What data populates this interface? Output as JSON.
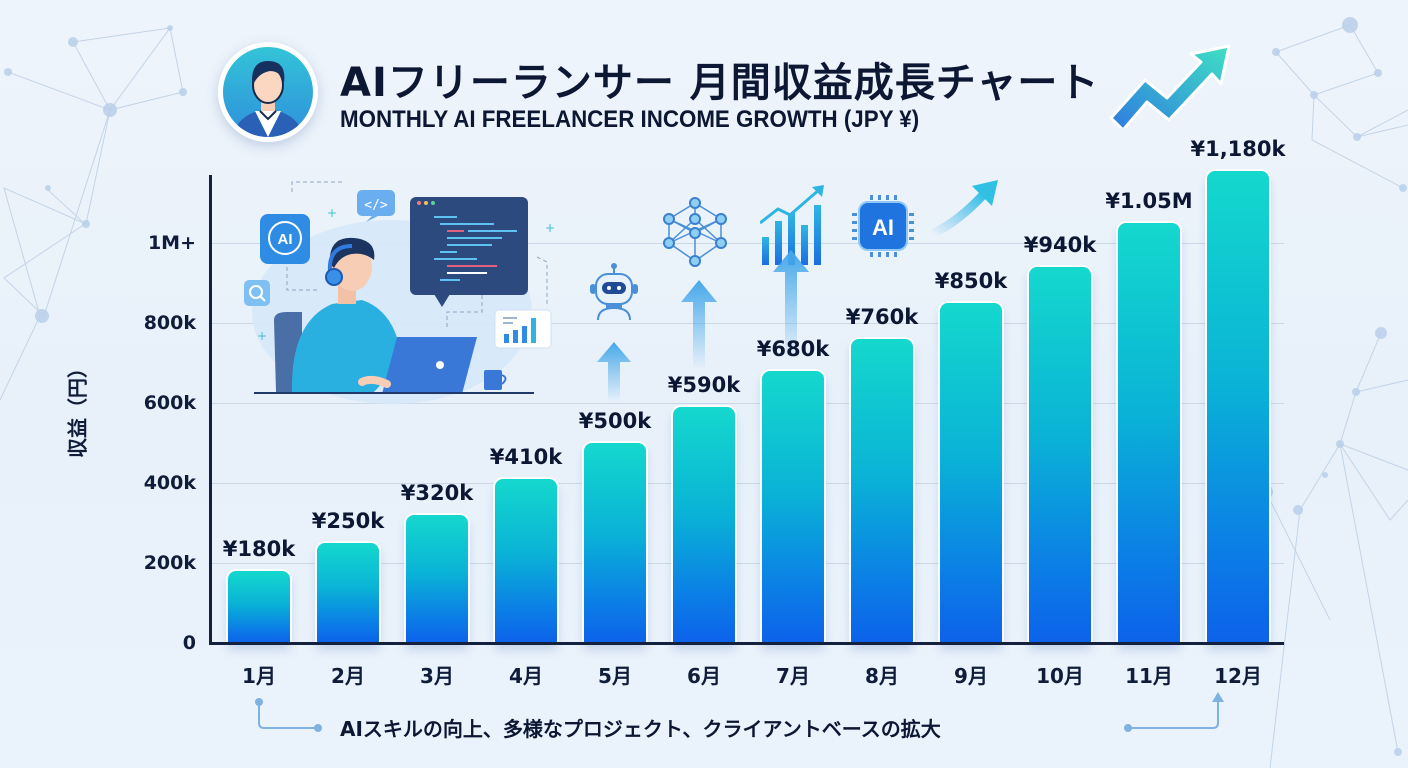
{
  "header": {
    "title_jp": "AIフリーランサー 月間収益成長チャート",
    "title_en": "MONTHLY AI FREELANCER INCOME GROWTH (JPY ¥)",
    "avatar_icon": "businessman-avatar-icon",
    "trend_icon": "upward-trend-arrow-icon"
  },
  "axes": {
    "y_label": "収益（円）",
    "y_ticks": [
      {
        "label": "0",
        "value": 0
      },
      {
        "label": "200k",
        "value": 200
      },
      {
        "label": "400k",
        "value": 400
      },
      {
        "label": "600k",
        "value": 600
      },
      {
        "label": "800k",
        "value": 800
      },
      {
        "label": "1M+",
        "value": 1000
      }
    ]
  },
  "footer": {
    "note": "AIスキルの向上、多様なプロジェクト、クライアントベースの拡大"
  },
  "decorations": {
    "illustration": "freelancer-at-laptop-illustration",
    "icons": [
      "ai-brain-icon",
      "code-icon",
      "search-icon",
      "code-window-icon",
      "bar-chart-card-icon",
      "robot-icon",
      "neural-network-icon",
      "growth-chart-icon",
      "ai-chip-icon",
      "curved-arrow-icon"
    ]
  },
  "colors": {
    "bar_top": "#14d8cd",
    "bar_bottom": "#0d62ea",
    "text": "#0c1733",
    "background": "#eef4fb"
  },
  "chart_data": {
    "type": "bar",
    "title": "AIフリーランサー 月間収益成長チャート",
    "subtitle": "MONTHLY AI FREELANCER INCOME GROWTH (JPY ¥)",
    "xlabel": "",
    "ylabel": "収益（円）",
    "categories": [
      "1月",
      "2月",
      "3月",
      "4月",
      "5月",
      "6月",
      "7月",
      "8月",
      "9月",
      "10月",
      "11月",
      "12月"
    ],
    "values": [
      180000,
      250000,
      320000,
      410000,
      500000,
      590000,
      680000,
      760000,
      850000,
      940000,
      1050000,
      1180000
    ],
    "data_labels": [
      "¥180k",
      "¥250k",
      "¥320k",
      "¥410k",
      "¥500k",
      "¥590k",
      "¥680k",
      "¥760k",
      "¥850k",
      "¥940k",
      "¥1.05M",
      "¥1,180k"
    ],
    "y_tick_labels": [
      "0",
      "200k",
      "400k",
      "600k",
      "800k",
      "1M+"
    ],
    "ylim": [
      0,
      1200000
    ],
    "grid": true,
    "legend": null,
    "annotation": "AIスキルの向上、多様なプロジェクト、クライアントベースの拡大"
  }
}
